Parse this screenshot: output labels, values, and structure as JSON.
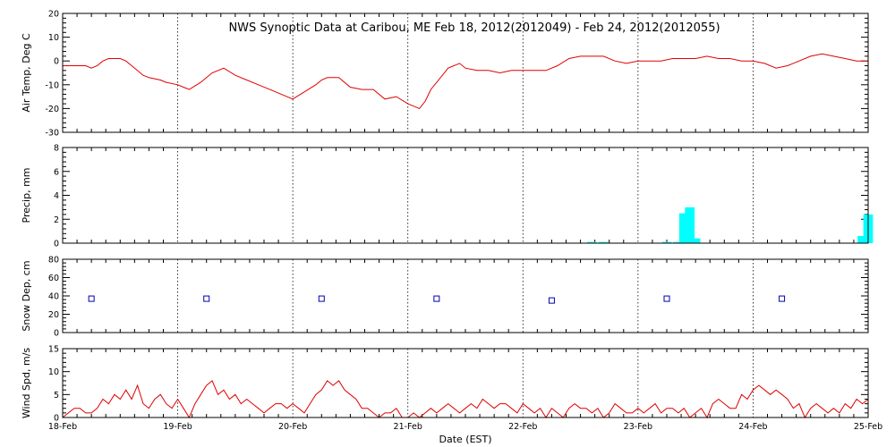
{
  "title": "NWS Synoptic Data at Caribou, ME   Feb 18, 2012(2012049) - Feb 24, 2012(2012055)",
  "xlabel": "Date (EST)",
  "x_ticks": [
    "18-Feb",
    "19-Feb",
    "20-Feb",
    "21-Feb",
    "22-Feb",
    "23-Feb",
    "24-Feb",
    "25-Feb"
  ],
  "colors": {
    "temp": "#e00000",
    "precip": "#00ffff",
    "snow": "#0000b0",
    "wind": "#e00000"
  },
  "chart_data": [
    {
      "type": "line",
      "ylabel": "Air Temp, Deg C",
      "ylim": [
        -30,
        20
      ],
      "yticks": [
        -30,
        -20,
        -10,
        0,
        10,
        20
      ],
      "xlim": [
        0,
        7
      ],
      "grid": true,
      "series": [
        {
          "x": [
            0,
            0.1,
            0.2,
            0.25,
            0.3,
            0.35,
            0.4,
            0.5,
            0.55,
            0.6,
            0.7,
            0.75,
            0.85,
            0.9,
            1.0,
            1.05,
            1.1,
            1.2,
            1.25,
            1.3,
            1.4,
            1.5,
            1.6,
            1.7,
            1.8,
            1.9,
            2.0,
            2.1,
            2.2,
            2.25,
            2.3,
            2.4,
            2.5,
            2.6,
            2.7,
            2.8,
            2.9,
            3.0,
            3.05,
            3.1,
            3.15,
            3.2,
            3.3,
            3.35,
            3.4,
            3.45,
            3.5,
            3.6,
            3.7,
            3.8,
            3.9,
            4.0,
            4.1,
            4.2,
            4.3,
            4.4,
            4.5,
            4.55,
            4.6,
            4.7,
            4.8,
            4.9,
            5.0,
            5.1,
            5.2,
            5.3,
            5.4,
            5.5,
            5.6,
            5.7,
            5.8,
            5.9,
            6.0,
            6.1,
            6.2,
            6.3,
            6.4,
            6.5,
            6.6,
            6.7,
            6.8,
            6.9,
            7.0
          ],
          "y": [
            -2,
            -2,
            -2,
            -3,
            -2,
            0,
            1,
            1,
            0,
            -2,
            -6,
            -7,
            -8,
            -9,
            -10,
            -11,
            -12,
            -9,
            -7,
            -5,
            -3,
            -6,
            -8,
            -10,
            -12,
            -14,
            -16,
            -13,
            -10,
            -8,
            -7,
            -7,
            -11,
            -12,
            -12,
            -16,
            -15,
            -18,
            -19,
            -20,
            -17,
            -12,
            -6,
            -3,
            -2,
            -1,
            -3,
            -4,
            -4,
            -5,
            -4,
            -4,
            -4,
            -4,
            -2,
            1,
            2,
            2,
            2,
            2,
            0,
            -1,
            0,
            0,
            0,
            1,
            1,
            1,
            2,
            1,
            1,
            0,
            0,
            -1,
            -3,
            -2,
            0,
            2,
            3,
            2,
            1,
            0,
            0
          ]
        }
      ]
    },
    {
      "type": "bar",
      "ylabel": "Precip, mm",
      "ylim": [
        0,
        8
      ],
      "yticks": [
        0,
        2,
        4,
        6,
        8
      ],
      "xlim": [
        0,
        7
      ],
      "grid": true,
      "series": [
        {
          "x": [
            4.6,
            4.7,
            5.25,
            5.35,
            5.4,
            5.45,
            5.5,
            6.95,
            7.0
          ],
          "values": [
            0.1,
            0.1,
            0.1,
            0.1,
            2.5,
            3.0,
            0.4,
            0.6,
            2.4
          ]
        }
      ]
    },
    {
      "type": "scatter",
      "ylabel": "Snow Dep, cm",
      "ylim": [
        0,
        80
      ],
      "yticks": [
        0,
        20,
        40,
        60,
        80
      ],
      "xlim": [
        0,
        7
      ],
      "grid": true,
      "series": [
        {
          "x": [
            0.25,
            1.25,
            2.25,
            3.25,
            4.25,
            5.25,
            6.25
          ],
          "y": [
            37,
            37,
            37,
            37,
            35,
            37,
            37
          ]
        }
      ]
    },
    {
      "type": "line",
      "ylabel": "Wind Spd, m/s",
      "ylim": [
        0,
        15
      ],
      "yticks": [
        0,
        5,
        10,
        15
      ],
      "xlim": [
        0,
        7
      ],
      "grid": true,
      "series": [
        {
          "x": [
            0,
            0.05,
            0.1,
            0.15,
            0.2,
            0.25,
            0.3,
            0.35,
            0.4,
            0.45,
            0.5,
            0.55,
            0.6,
            0.65,
            0.7,
            0.75,
            0.8,
            0.85,
            0.9,
            0.95,
            1.0,
            1.05,
            1.1,
            1.15,
            1.2,
            1.25,
            1.3,
            1.35,
            1.4,
            1.45,
            1.5,
            1.55,
            1.6,
            1.65,
            1.7,
            1.75,
            1.8,
            1.85,
            1.9,
            1.95,
            2.0,
            2.05,
            2.1,
            2.15,
            2.2,
            2.25,
            2.3,
            2.35,
            2.4,
            2.45,
            2.5,
            2.55,
            2.6,
            2.65,
            2.7,
            2.75,
            2.8,
            2.85,
            2.9,
            2.95,
            3.0,
            3.05,
            3.1,
            3.15,
            3.2,
            3.25,
            3.3,
            3.35,
            3.4,
            3.45,
            3.5,
            3.55,
            3.6,
            3.65,
            3.7,
            3.75,
            3.8,
            3.85,
            3.9,
            3.95,
            4.0,
            4.05,
            4.1,
            4.15,
            4.2,
            4.25,
            4.3,
            4.35,
            4.4,
            4.45,
            4.5,
            4.55,
            4.6,
            4.65,
            4.7,
            4.75,
            4.8,
            4.85,
            4.9,
            4.95,
            5.0,
            5.05,
            5.1,
            5.15,
            5.2,
            5.25,
            5.3,
            5.35,
            5.4,
            5.45,
            5.5,
            5.55,
            5.6,
            5.65,
            5.7,
            5.75,
            5.8,
            5.85,
            5.9,
            5.95,
            6.0,
            6.05,
            6.1,
            6.15,
            6.2,
            6.25,
            6.3,
            6.35,
            6.4,
            6.45,
            6.5,
            6.55,
            6.6,
            6.65,
            6.7,
            6.75,
            6.8,
            6.85,
            6.9,
            6.95,
            7.0
          ],
          "y": [
            0,
            1,
            2,
            2,
            1,
            1,
            2,
            4,
            3,
            5,
            4,
            6,
            4,
            7,
            3,
            2,
            4,
            5,
            3,
            2,
            4,
            2,
            0,
            3,
            5,
            7,
            8,
            5,
            6,
            4,
            5,
            3,
            4,
            3,
            2,
            1,
            2,
            3,
            3,
            2,
            3,
            2,
            1,
            3,
            5,
            6,
            8,
            7,
            8,
            6,
            5,
            4,
            2,
            2,
            1,
            0,
            1,
            1,
            2,
            0,
            0,
            1,
            0,
            1,
            2,
            1,
            2,
            3,
            2,
            1,
            2,
            3,
            2,
            4,
            3,
            2,
            3,
            3,
            2,
            1,
            3,
            2,
            1,
            2,
            0,
            2,
            1,
            0,
            2,
            3,
            2,
            2,
            1,
            2,
            0,
            1,
            3,
            2,
            1,
            1,
            2,
            1,
            2,
            3,
            1,
            2,
            2,
            1,
            2,
            0,
            1,
            2,
            0,
            3,
            4,
            3,
            2,
            2,
            5,
            4,
            6,
            7,
            6,
            5,
            6,
            5,
            4,
            2,
            3,
            0,
            2,
            3,
            2,
            1,
            2,
            1,
            3,
            2,
            4,
            3,
            4
          ]
        }
      ]
    }
  ]
}
